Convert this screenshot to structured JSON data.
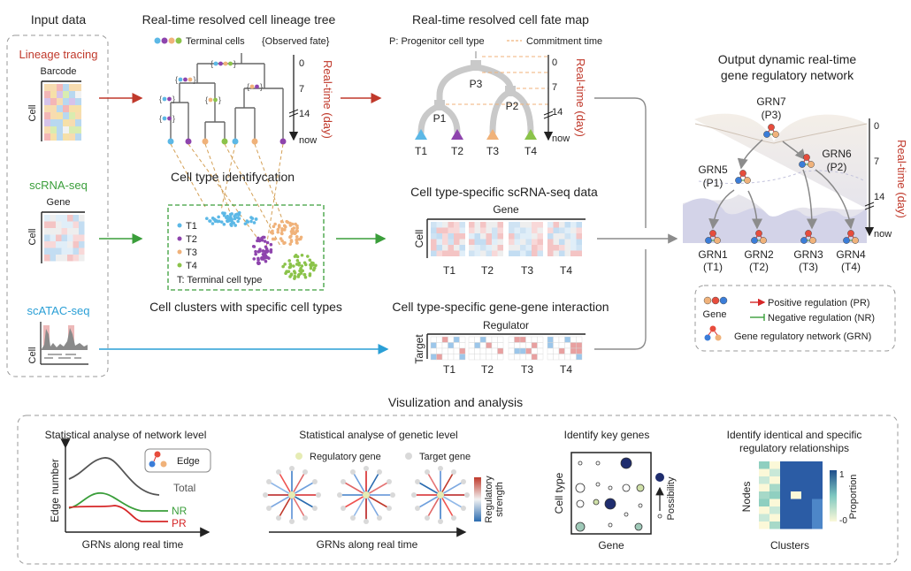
{
  "input": {
    "title": "Input data",
    "lineage": {
      "label": "Lineage tracing",
      "barcode": "Barcode",
      "cell": "Cell"
    },
    "scrna": {
      "label": "scRNA-seq",
      "gene": "Gene",
      "cell": "Cell"
    },
    "scatac": {
      "label": "scATAC-seq",
      "cell": "Cell"
    }
  },
  "tree": {
    "title": "Real-time resolved cell lineage tree",
    "legend_terminal": "Terminal cells",
    "legend_observed": "{Observed fate}",
    "fate_tag": "{",
    "fate_tag_close": "}"
  },
  "fatemap": {
    "title": "Real-time resolved cell fate map",
    "legend_progenitor": "P: Progenitor cell type",
    "legend_commitment": "Commitment time",
    "nodes": [
      "P3",
      "P1",
      "P2"
    ],
    "terminals": [
      "T1",
      "T2",
      "T3",
      "T4"
    ]
  },
  "axis": {
    "label": "Real-time (day)",
    "ticks": [
      "0",
      "7",
      "14",
      "now"
    ]
  },
  "clusters": {
    "title": "Cell type identifycation",
    "subtitle": "Cell clusters with specific cell types",
    "legend": [
      "T1",
      "T2",
      "T3",
      "T4"
    ],
    "caption": "T: Terminal cell type"
  },
  "scdata": {
    "title": "Cell type-specific scRNA-seq data",
    "gene": "Gene",
    "cell": "Cell",
    "groups": [
      "T1",
      "T2",
      "T3",
      "T4"
    ]
  },
  "ggi": {
    "title": "Cell type-specific gene-gene interaction",
    "regulator": "Regulator",
    "target": "Target",
    "groups": [
      "T1",
      "T2",
      "T3",
      "T4"
    ]
  },
  "output": {
    "title_line1": "Output dynamic real-time",
    "title_line2": "gene regulatory network",
    "grns": [
      {
        "name": "GRN7",
        "type": "(P3)"
      },
      {
        "name": "GRN5",
        "type": "(P1)"
      },
      {
        "name": "GRN6",
        "type": "(P2)"
      },
      {
        "name": "GRN1",
        "type": "(T1)"
      },
      {
        "name": "GRN2",
        "type": "(T2)"
      },
      {
        "name": "GRN3",
        "type": "(T3)"
      },
      {
        "name": "GRN4",
        "type": "(T4)"
      }
    ],
    "legend": {
      "gene": "Gene",
      "pr": "Positive regulation (PR)",
      "nr": "Negative regulation (NR)",
      "grn": "Gene regulatory network (GRN)"
    }
  },
  "viz": {
    "title": "Visulization and analysis",
    "net": {
      "title": "Statistical analyse of network level",
      "ylabel": "Edge number",
      "xlabel": "GRNs along real time",
      "edge": "Edge",
      "series": [
        "Total",
        "NR",
        "PR"
      ]
    },
    "gen": {
      "title": "Statistical analyse of genetic level",
      "regulatory": "Regulatory gene",
      "target": "Target gene",
      "xlabel": "GRNs along real time",
      "colorbar_line1": "Regulatory",
      "colorbar_line2": "strength"
    },
    "key": {
      "title": "Identify key genes",
      "ylabel": "Cell type",
      "xlabel": "Gene",
      "possibility": "Possibility"
    },
    "rel": {
      "title_line1": "Identify identical and specific",
      "title_line2": "regulatory relationships",
      "ylabel": "Nodes",
      "xlabel": "Clusters",
      "proportion": "Proportion",
      "tick_max": "1",
      "tick_min": "-0"
    }
  },
  "colors": {
    "red": "#c0392b",
    "green": "#3a9e3a",
    "blue": "#2a9fd6",
    "gray": "#8c8c8c",
    "t1": "#5cb8e6",
    "t2": "#8e44ad",
    "t3": "#f0b27a",
    "t4": "#8bc34a"
  }
}
